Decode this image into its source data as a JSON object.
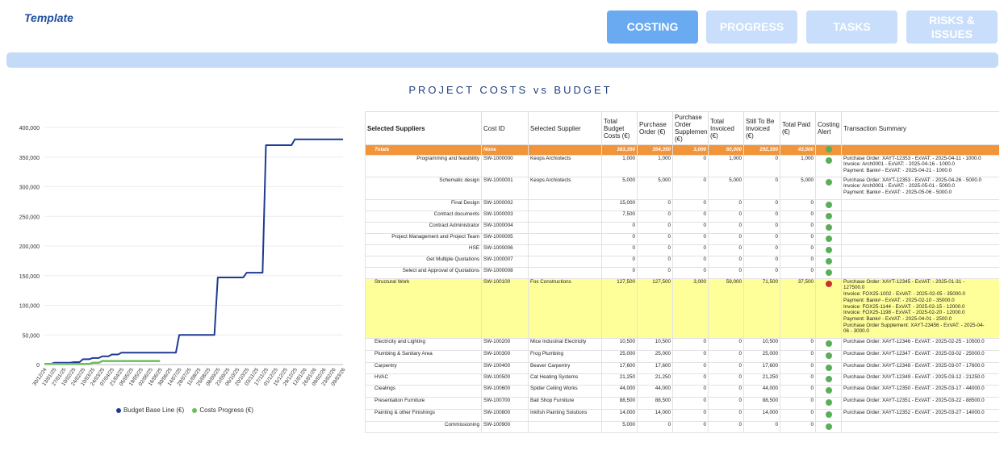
{
  "header": {
    "brand": "Template",
    "nav": [
      {
        "label": "COSTING",
        "active": true
      },
      {
        "label": "PROGRESS",
        "active": false
      },
      {
        "label": "TASKS",
        "active": false
      },
      {
        "label": "RISKS &\nISSUES",
        "active": false
      }
    ]
  },
  "page_title": "PROJECT COSTS vs BUDGET",
  "chart_data": {
    "type": "line",
    "title": "",
    "xlabel": "",
    "ylabel": "",
    "ylim": [
      0,
      400000
    ],
    "yticks": [
      "400,000",
      "350,000",
      "300,000",
      "250,000",
      "200,000",
      "150,000",
      "100,000",
      "50,000",
      "0"
    ],
    "categories": [
      "30/12/24",
      "13/01/25",
      "27/01/25",
      "10/02/25",
      "24/02/25",
      "10/03/25",
      "24/03/25",
      "07/04/25",
      "21/04/25",
      "05/05/25",
      "19/05/25",
      "02/06/25",
      "16/06/25",
      "30/06/25",
      "14/07/25",
      "28/07/25",
      "11/08/25",
      "25/08/25",
      "08/09/25",
      "22/09/25",
      "06/10/25",
      "20/10/25",
      "03/11/25",
      "17/11/25",
      "01/12/25",
      "15/12/25",
      "29/12/25",
      "12/01/26",
      "26/01/26",
      "09/02/26",
      "23/02/26",
      "09/03/26"
    ],
    "series": [
      {
        "name": "Budget Base Line (€)",
        "color": "#1f3a93",
        "values": [
          1000,
          3000,
          3000,
          4000,
          9000,
          11000,
          14000,
          17000,
          20000,
          20000,
          20000,
          20000,
          20000,
          20000,
          50000,
          50000,
          50000,
          50000,
          147000,
          147000,
          147000,
          155000,
          155000,
          370000,
          370000,
          370000,
          380000,
          380000,
          380000,
          380000,
          380000,
          380000
        ]
      },
      {
        "name": "Costs Progress (€)",
        "color": "#6cbd5c",
        "values": [
          1000,
          1000,
          1000,
          1000,
          1000,
          3000,
          6000,
          6000,
          6000,
          6000,
          6000,
          6000,
          6000,
          null,
          null,
          null,
          null,
          null,
          null,
          null,
          null,
          null,
          null,
          null,
          null,
          null,
          null,
          null,
          null,
          null,
          null,
          null
        ]
      }
    ],
    "legend_position": "bottom"
  },
  "table": {
    "headers": [
      "Selected Suppliers",
      "Cost ID",
      "Selected Supplier",
      "Total Budget Costs (€)",
      "Purchase Order (€)",
      "Purchase Order Supplemen (€)",
      "Total Invoiced (€)",
      "Still To Be Invoiced (€)",
      "Total Paid (€)",
      "Costing Alert",
      "Transaction Summary"
    ],
    "totals": {
      "label": "Totals",
      "cost_id": "None",
      "supplier": "",
      "budget": "383,350",
      "po": "354,350",
      "pos": "3,000",
      "invoiced": "65,000",
      "still": "292,350",
      "paid": "43,500"
    },
    "rows": [
      {
        "name": "Programming and feasibility",
        "indent": true,
        "cost_id": "SW-1000000",
        "supplier": "Keops Archiotects",
        "budget": "1,000",
        "po": "1,000",
        "pos": "0",
        "invoiced": "1,000",
        "still": "0",
        "paid": "1,000",
        "alert": "green",
        "summary": "Purchase Order: XAYT-12353 - ExVAT: - 2025-04-11 - 1000.0\nInvoice: Arch0001 - ExVAT: - 2025-04-16 - 1000.0\nPayment: Bank# - ExVAT: - 2025-04-21 - 1000.0",
        "highlight": false,
        "height": 27
      },
      {
        "name": "Schematic design",
        "indent": true,
        "cost_id": "SW-1000001",
        "supplier": "Keops Archiotects",
        "budget": "5,000",
        "po": "5,000",
        "pos": "0",
        "invoiced": "5,000",
        "still": "0",
        "paid": "5,000",
        "alert": "green",
        "summary": "Purchase Order: XAYT-12353 - ExVAT: - 2025-04-26 - 5000.0\nInvoice: Arch0001 - ExVAT: - 2025-05-01 - 5000.0\nPayment: Bank# - ExVAT: - 2025-05-06 - 5000.0",
        "highlight": false,
        "height": 28
      },
      {
        "name": "Final Design",
        "indent": true,
        "cost_id": "SW-1000002",
        "supplier": "",
        "budget": "15,000",
        "po": "0",
        "pos": "0",
        "invoiced": "0",
        "still": "0",
        "paid": "0",
        "alert": "green",
        "summary": "",
        "highlight": false,
        "height": 14
      },
      {
        "name": "Contract documents",
        "indent": true,
        "cost_id": "SW-1000003",
        "supplier": "",
        "budget": "7,500",
        "po": "0",
        "pos": "0",
        "invoiced": "0",
        "still": "0",
        "paid": "0",
        "alert": "green",
        "summary": "",
        "highlight": false,
        "height": 14
      },
      {
        "name": "Contract Administrator",
        "indent": true,
        "cost_id": "SW-1000004",
        "supplier": "",
        "budget": "0",
        "po": "0",
        "pos": "0",
        "invoiced": "0",
        "still": "0",
        "paid": "0",
        "alert": "green",
        "summary": "",
        "highlight": false,
        "height": 14
      },
      {
        "name": "Project Management and Project Team",
        "indent": true,
        "cost_id": "SW-1000005",
        "supplier": "",
        "budget": "0",
        "po": "0",
        "pos": "0",
        "invoiced": "0",
        "still": "0",
        "paid": "0",
        "alert": "green",
        "summary": "",
        "highlight": false,
        "height": 14
      },
      {
        "name": "HSE",
        "indent": true,
        "cost_id": "SW-1000006",
        "supplier": "",
        "budget": "0",
        "po": "0",
        "pos": "0",
        "invoiced": "0",
        "still": "0",
        "paid": "0",
        "alert": "green",
        "summary": "",
        "highlight": false,
        "height": 14
      },
      {
        "name": "Get Multiple Quotations",
        "indent": true,
        "cost_id": "SW-1000007",
        "supplier": "",
        "budget": "0",
        "po": "0",
        "pos": "0",
        "invoiced": "0",
        "still": "0",
        "paid": "0",
        "alert": "green",
        "summary": "",
        "highlight": false,
        "height": 14
      },
      {
        "name": "Select and Approval of Quotations",
        "indent": true,
        "cost_id": "SW-1000008",
        "supplier": "",
        "budget": "0",
        "po": "0",
        "pos": "0",
        "invoiced": "0",
        "still": "0",
        "paid": "0",
        "alert": "green",
        "summary": "",
        "highlight": false,
        "height": 14
      },
      {
        "name": "Structural Work",
        "indent": false,
        "cost_id": "SW-100100",
        "supplier": "Fox Constructions",
        "budget": "127,500",
        "po": "127,500",
        "pos": "3,000",
        "invoiced": "59,000",
        "still": "71,500",
        "paid": "37,500",
        "alert": "red",
        "summary": "Purchase Order: XAYT-12345 - ExVAT: - 2025-01-31 -\n127500.0\nInvoice: FOX25-1002 - ExVAT: - 2025-02-05 - 35000.0\nPayment: Bank# - ExVAT: - 2025-02-10 - 35000.0\nInvoice: FOX25-1144 - ExVAT: - 2025-02-15 - 12000.0\nInvoice: FOX25-1198 - ExVAT: - 2025-02-20 - 12000.0\nPayment: Bank# - ExVAT: - 2025-04-01 - 2500.0\nPurchase Order Supplement: XAYT-23456 - ExVAT: - 2025-04-\n06 - 3000.0",
        "highlight": true,
        "height": 74
      },
      {
        "name": "Electricity and Lighting",
        "indent": false,
        "cost_id": "SW-100200",
        "supplier": "Mice Industrial Electricity",
        "budget": "10,500",
        "po": "10,500",
        "pos": "0",
        "invoiced": "0",
        "still": "10,500",
        "paid": "0",
        "alert": "green",
        "summary": "Purchase Order: XAYT-12346 - ExVAT: - 2025-02-25 - 10500.0",
        "highlight": false,
        "height": 15
      },
      {
        "name": "Plumbing & Sanitary Area",
        "indent": false,
        "cost_id": "SW-100300",
        "supplier": "Frog Plumbing",
        "budget": "25,000",
        "po": "25,000",
        "pos": "0",
        "invoiced": "0",
        "still": "25,000",
        "paid": "0",
        "alert": "green",
        "summary": "Purchase Order: XAYT-12347 - ExVAT: - 2025-03-02 - 25000.0",
        "highlight": false,
        "height": 15
      },
      {
        "name": "Carpentry",
        "indent": false,
        "cost_id": "SW-100400",
        "supplier": "Beaver Carpentry",
        "budget": "17,600",
        "po": "17,600",
        "pos": "0",
        "invoiced": "0",
        "still": "17,600",
        "paid": "0",
        "alert": "green",
        "summary": "Purchase Order: XAYT-12348 - ExVAT: - 2025-03-07 - 17600.0",
        "highlight": false,
        "height": 14
      },
      {
        "name": "HVAC",
        "indent": false,
        "cost_id": "SW-100500",
        "supplier": "Cat Heating Systems",
        "budget": "21,250",
        "po": "21,250",
        "pos": "0",
        "invoiced": "0",
        "still": "21,250",
        "paid": "0",
        "alert": "green",
        "summary": "Purchase Order: XAYT-12349 - ExVAT: - 2025-03-12 - 21250.0",
        "highlight": false,
        "height": 14
      },
      {
        "name": "Ciealings",
        "indent": false,
        "cost_id": "SW-100600",
        "supplier": "Spider Ceiling Works",
        "budget": "44,000",
        "po": "44,000",
        "pos": "0",
        "invoiced": "0",
        "still": "44,000",
        "paid": "0",
        "alert": "green",
        "summary": "Purchase Order: XAYT-12350 - ExVAT: - 2025-03-17 - 44000.0",
        "highlight": false,
        "height": 15
      },
      {
        "name": "Presentation Furniture",
        "indent": false,
        "cost_id": "SW-100700",
        "supplier": "Bait Shop Furniture",
        "budget": "88,500",
        "po": "88,500",
        "pos": "0",
        "invoiced": "0",
        "still": "88,500",
        "paid": "0",
        "alert": "green",
        "summary": "Purchase Order: XAYT-12351 - ExVAT: - 2025-03-22 - 88500.0",
        "highlight": false,
        "height": 15
      },
      {
        "name": "Painting & other Finishings",
        "indent": false,
        "cost_id": "SW-100800",
        "supplier": "Inkfish Painting Solutions",
        "budget": "14,000",
        "po": "14,000",
        "pos": "0",
        "invoiced": "0",
        "still": "14,000",
        "paid": "0",
        "alert": "green",
        "summary": "Purchase Order: XAYT-12352 - ExVAT: - 2025-03-27 - 14000.0",
        "highlight": false,
        "height": 15
      },
      {
        "name": "Commissioning",
        "indent": true,
        "cost_id": "SW-100900",
        "supplier": "",
        "budget": "5,000",
        "po": "0",
        "pos": "0",
        "invoiced": "0",
        "still": "0",
        "paid": "0",
        "alert": "green",
        "summary": "",
        "highlight": false,
        "height": 14
      }
    ]
  }
}
